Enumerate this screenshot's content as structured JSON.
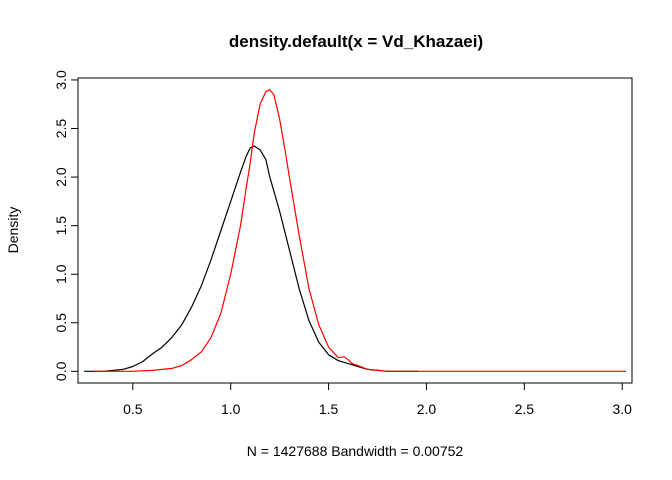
{
  "chart_data": {
    "type": "line",
    "title": "density.default(x = Vd_Khazaei)",
    "xlabel": "N = 1427688   Bandwidth = 0.00752",
    "ylabel": "Density",
    "xlim": [
      0.22,
      3.05
    ],
    "ylim": [
      -0.12,
      3.02
    ],
    "x_ticks": [
      "0.5",
      "1.0",
      "1.5",
      "2.0",
      "2.5",
      "3.0"
    ],
    "y_ticks": [
      "0.0",
      "0.5",
      "1.0",
      "1.5",
      "2.0",
      "2.5",
      "3.0"
    ],
    "grid": false,
    "legend": "none",
    "series": [
      {
        "color": "#000000",
        "x": [
          0.25,
          0.35,
          0.45,
          0.5,
          0.55,
          0.6,
          0.65,
          0.7,
          0.75,
          0.8,
          0.85,
          0.9,
          0.95,
          1.0,
          1.05,
          1.08,
          1.1,
          1.12,
          1.15,
          1.18,
          1.2,
          1.25,
          1.3,
          1.35,
          1.4,
          1.45,
          1.5,
          1.55,
          1.6,
          1.65,
          1.7,
          1.8,
          1.9,
          1.96
        ],
        "y": [
          0.0,
          0.0,
          0.02,
          0.05,
          0.1,
          0.18,
          0.25,
          0.35,
          0.48,
          0.66,
          0.88,
          1.15,
          1.45,
          1.75,
          2.05,
          2.22,
          2.3,
          2.32,
          2.28,
          2.18,
          2.0,
          1.65,
          1.25,
          0.85,
          0.52,
          0.3,
          0.17,
          0.11,
          0.08,
          0.05,
          0.02,
          0.0,
          0.0,
          0.0
        ]
      },
      {
        "color": "#ff0000",
        "x": [
          0.3,
          0.5,
          0.6,
          0.7,
          0.75,
          0.8,
          0.85,
          0.9,
          0.95,
          1.0,
          1.05,
          1.08,
          1.1,
          1.12,
          1.15,
          1.18,
          1.2,
          1.22,
          1.25,
          1.28,
          1.3,
          1.35,
          1.4,
          1.45,
          1.5,
          1.55,
          1.58,
          1.6,
          1.62,
          1.65,
          1.7,
          1.8,
          2.0,
          2.5,
          3.02
        ],
        "y": [
          0.0,
          0.0,
          0.01,
          0.03,
          0.06,
          0.12,
          0.2,
          0.35,
          0.6,
          1.0,
          1.5,
          1.9,
          2.15,
          2.45,
          2.75,
          2.88,
          2.9,
          2.85,
          2.6,
          2.25,
          2.0,
          1.4,
          0.85,
          0.48,
          0.25,
          0.14,
          0.15,
          0.12,
          0.08,
          0.06,
          0.02,
          0.0,
          0.0,
          0.0,
          0.0
        ]
      }
    ]
  }
}
